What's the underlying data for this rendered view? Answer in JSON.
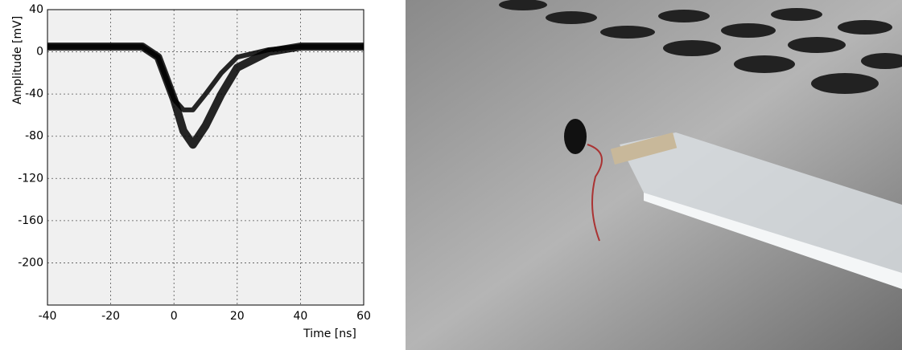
{
  "chart_data": {
    "type": "line",
    "x_label": "Time [ns]",
    "y_label": "Amplitude [mV]",
    "xlim": [
      -40,
      60
    ],
    "ylim": [
      -240,
      40
    ],
    "xticks": [
      -40,
      -20,
      0,
      20,
      40,
      60
    ],
    "yticks": [
      40,
      0,
      -40,
      -80,
      -120,
      -160,
      -200
    ],
    "grid": true,
    "x": [
      -40,
      -20,
      -10,
      -5,
      0,
      3,
      6,
      10,
      15,
      20,
      30,
      40,
      60
    ],
    "series": [
      {
        "color": "#000000",
        "values": [
          5,
          5,
          5,
          -5,
          -45,
          -75,
          -88,
          -70,
          -40,
          -15,
          0,
          5,
          5
        ]
      },
      {
        "color": "#000000",
        "values": [
          5,
          5,
          5,
          -5,
          -45,
          -55,
          -55,
          -40,
          -20,
          -5,
          2,
          5,
          5
        ]
      }
    ]
  }
}
